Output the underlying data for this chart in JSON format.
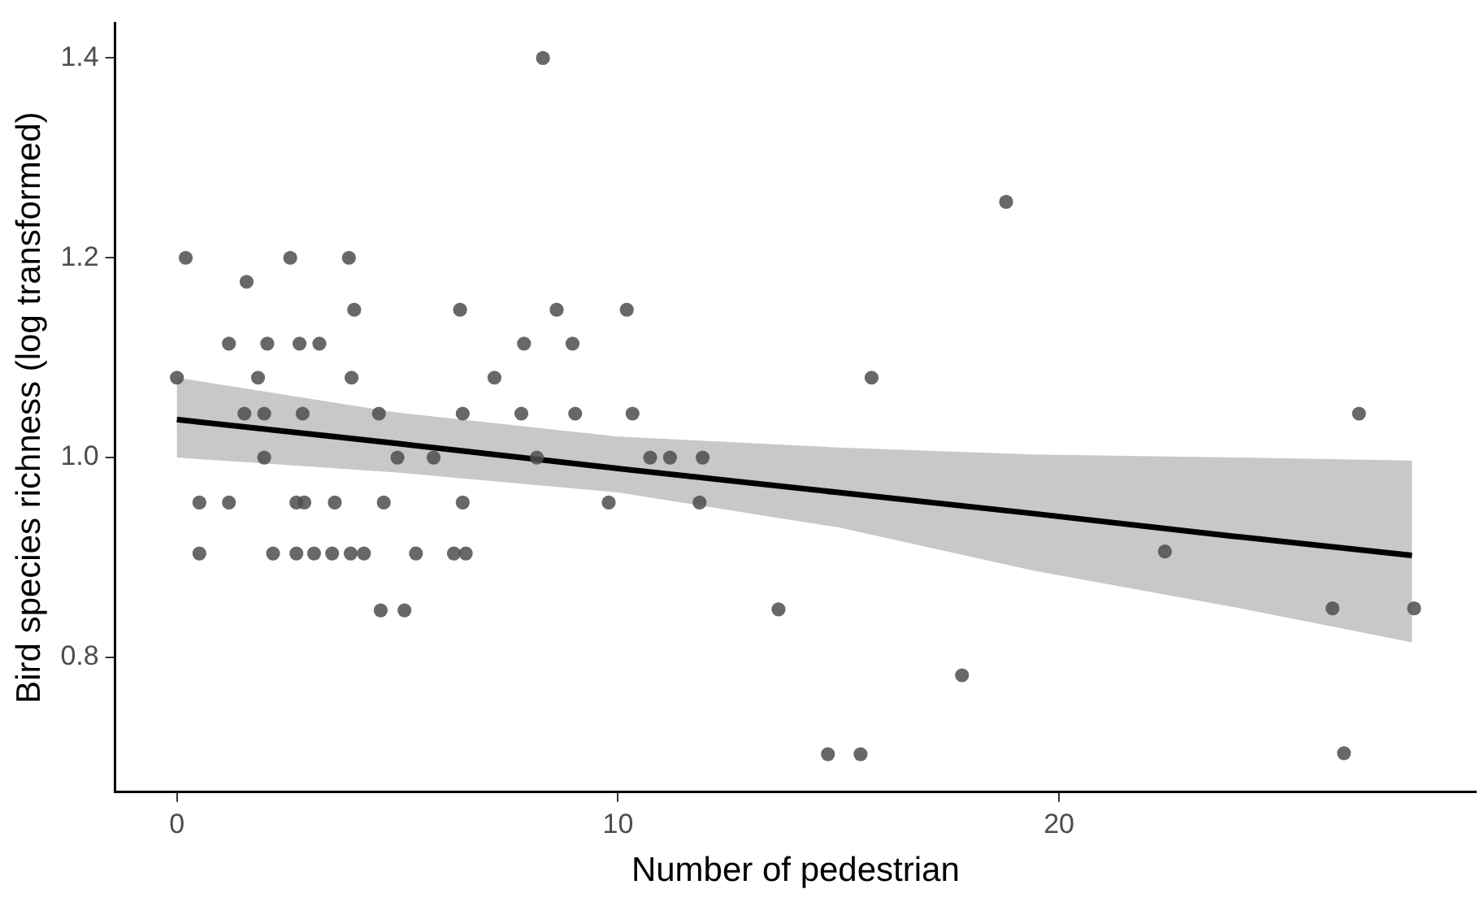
{
  "chart_data": {
    "type": "scatter",
    "xlabel": "Number of pedestrian",
    "ylabel": "Bird species richness (log transformed)",
    "xlim": [
      -1.4,
      29.45
    ],
    "ylim": [
      0.665,
      1.435
    ],
    "xticks": [
      0,
      10,
      20
    ],
    "yticks": [
      {
        "value": 0.8,
        "label": "0.8"
      },
      {
        "value": 1,
        "label": "1.0"
      },
      1.2,
      1.4
    ],
    "series": [
      {
        "marker": "circle",
        "color": "#4d4d4d",
        "x": [
          8.3,
          0.2,
          2.57,
          3.9,
          1.58,
          4.02,
          6.42,
          8.61,
          10.2,
          18.8,
          1.18,
          2.05,
          2.78,
          3.23,
          7.87,
          8.97,
          0,
          1.84,
          3.96,
          7.2,
          15.75,
          1.53,
          1.98,
          2.85,
          4.58,
          6.48,
          7.81,
          9.03,
          10.33,
          26.8,
          1.98,
          5.0,
          5.82,
          8.16,
          10.73,
          11.18,
          11.92,
          0.51,
          1.18,
          2.71,
          2.89,
          3.58,
          4.69,
          6.48,
          9.79,
          11.85,
          0.51,
          2.18,
          2.71,
          3.11,
          3.52,
          3.94,
          4.24,
          5.42,
          6.28,
          6.55,
          22.4,
          4.62,
          5.16,
          13.64,
          26.2,
          28.05,
          17.8,
          14.76,
          15.5,
          26.46
        ],
        "values": [
          1.4,
          1.2,
          1.2,
          1.2,
          1.176,
          1.148,
          1.148,
          1.148,
          1.148,
          1.256,
          1.114,
          1.114,
          1.114,
          1.114,
          1.114,
          1.114,
          1.08,
          1.08,
          1.08,
          1.08,
          1.08,
          1.044,
          1.044,
          1.044,
          1.044,
          1.044,
          1.044,
          1.044,
          1.044,
          1.044,
          1.0,
          1.0,
          1.0,
          1.0,
          1.0,
          1.0,
          1.0,
          0.955,
          0.955,
          0.955,
          0.955,
          0.955,
          0.955,
          0.955,
          0.955,
          0.955,
          0.904,
          0.904,
          0.904,
          0.904,
          0.904,
          0.904,
          0.904,
          0.904,
          0.904,
          0.904,
          0.906,
          0.847,
          0.847,
          0.848,
          0.849,
          0.849,
          0.782,
          0.703,
          0.703,
          0.704
        ]
      },
      {
        "type": "line",
        "color": "#000000",
        "x": [
          0,
          5,
          10,
          15,
          19.4,
          24,
          28
        ],
        "values": [
          1.038,
          1.014,
          0.989,
          0.965,
          0.944,
          0.921,
          0.902
        ],
        "lower": [
          1.0,
          0.985,
          0.965,
          0.93,
          0.887,
          0.85,
          0.815
        ],
        "upper": [
          1.08,
          1.045,
          1.021,
          1.01,
          1.003,
          1.0,
          0.997
        ]
      }
    ]
  }
}
